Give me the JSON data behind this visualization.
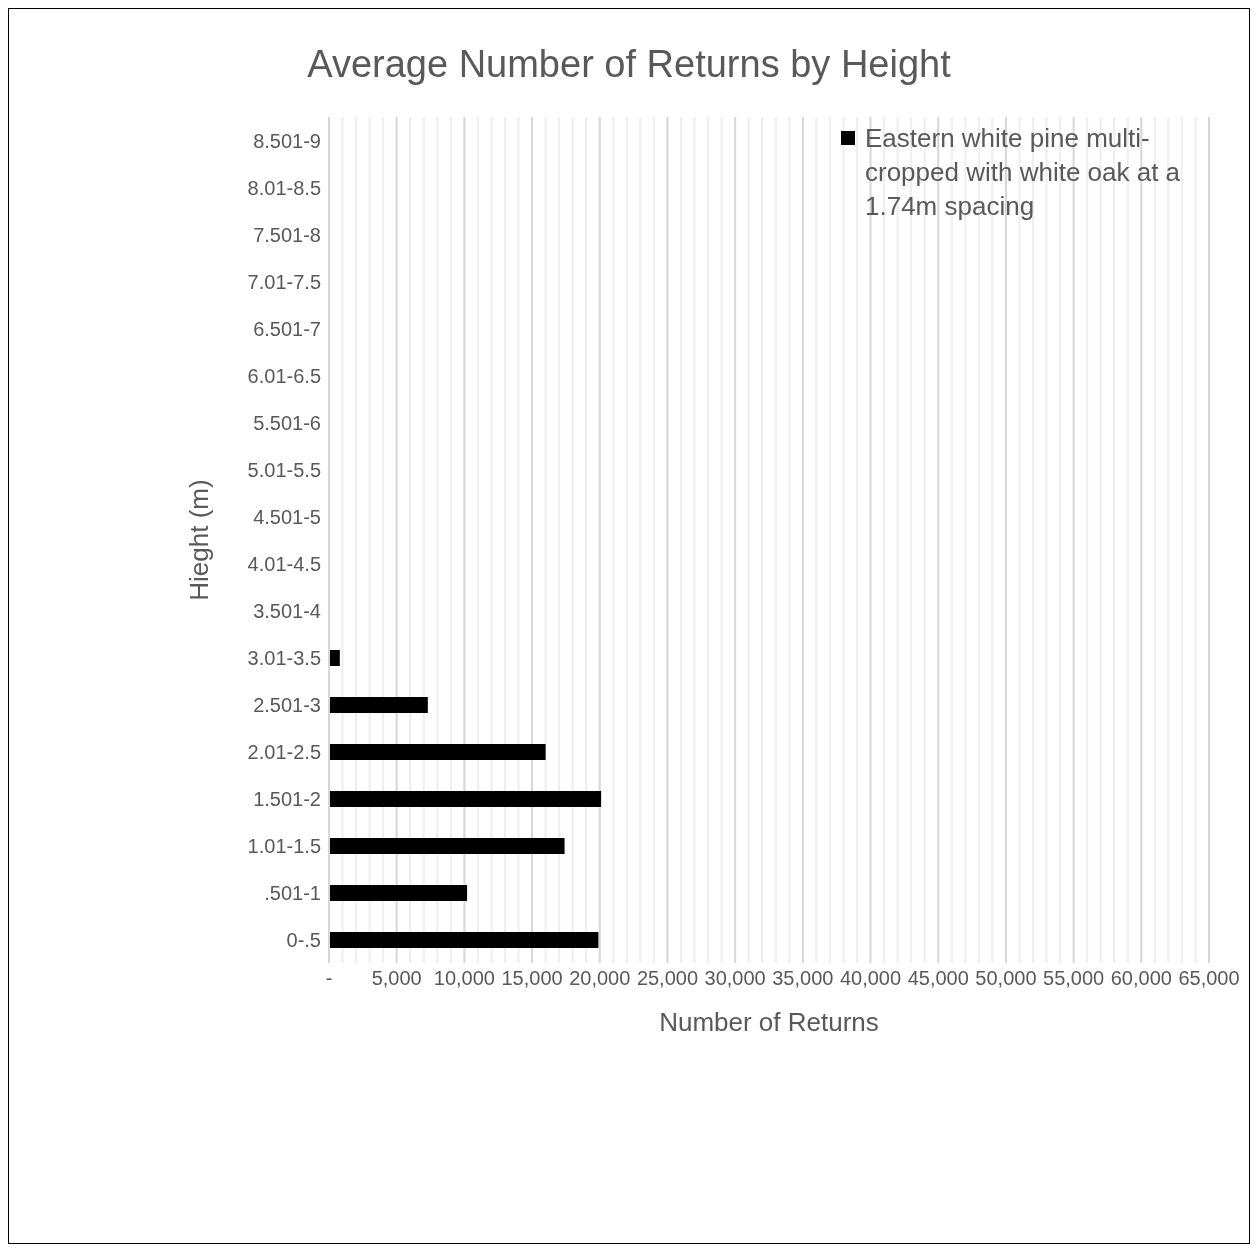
{
  "chart_data": {
    "type": "bar",
    "orientation": "horizontal",
    "title": "Average Number of Returns by Height",
    "xlabel": "Number of Returns",
    "ylabel": "Hieght (m)",
    "categories": [
      "8.501-9",
      "8.01-8.5",
      "7.501-8",
      "7.01-7.5",
      "6.501-7",
      "6.01-6.5",
      "5.501-6",
      "5.01-5.5",
      "4.501-5",
      "4.01-4.5",
      "3.501-4",
      "3.01-3.5",
      "2.501-3",
      "2.01-2.5",
      "1.501-2",
      "1.01-1.5",
      ".501-1",
      "0-.5"
    ],
    "series": [
      {
        "name": "Eastern white pine multi-cropped with white oak at a 1.74m spacing",
        "color": "#000000",
        "values": [
          0,
          0,
          0,
          0,
          0,
          0,
          0,
          0,
          0,
          0,
          0,
          800,
          7300,
          16000,
          20100,
          17400,
          10200,
          19900
        ]
      }
    ],
    "xlim": [
      0,
      65000
    ],
    "xticks": [
      {
        "value": 0,
        "label": "-"
      },
      {
        "value": 1000,
        "label": null
      },
      {
        "value": 2000,
        "label": null
      },
      {
        "value": 3000,
        "label": null
      },
      {
        "value": 4000,
        "label": null
      },
      {
        "value": 5000,
        "label": "5,000"
      },
      {
        "value": 6000,
        "label": null
      },
      {
        "value": 7000,
        "label": null
      },
      {
        "value": 8000,
        "label": null
      },
      {
        "value": 9000,
        "label": null
      },
      {
        "value": 10000,
        "label": "10,000"
      },
      {
        "value": 11000,
        "label": null
      },
      {
        "value": 12000,
        "label": null
      },
      {
        "value": 13000,
        "label": null
      },
      {
        "value": 14000,
        "label": null
      },
      {
        "value": 15000,
        "label": "15,000"
      },
      {
        "value": 16000,
        "label": null
      },
      {
        "value": 17000,
        "label": null
      },
      {
        "value": 18000,
        "label": null
      },
      {
        "value": 19000,
        "label": null
      },
      {
        "value": 20000,
        "label": "20,000"
      },
      {
        "value": 21000,
        "label": null
      },
      {
        "value": 22000,
        "label": null
      },
      {
        "value": 23000,
        "label": null
      },
      {
        "value": 24000,
        "label": null
      },
      {
        "value": 25000,
        "label": "25,000"
      },
      {
        "value": 26000,
        "label": null
      },
      {
        "value": 27000,
        "label": null
      },
      {
        "value": 28000,
        "label": null
      },
      {
        "value": 29000,
        "label": null
      },
      {
        "value": 30000,
        "label": "30,000"
      },
      {
        "value": 31000,
        "label": null
      },
      {
        "value": 32000,
        "label": null
      },
      {
        "value": 33000,
        "label": null
      },
      {
        "value": 34000,
        "label": null
      },
      {
        "value": 35000,
        "label": "35,000"
      },
      {
        "value": 36000,
        "label": null
      },
      {
        "value": 37000,
        "label": null
      },
      {
        "value": 38000,
        "label": null
      },
      {
        "value": 39000,
        "label": null
      },
      {
        "value": 40000,
        "label": "40,000"
      },
      {
        "value": 41000,
        "label": null
      },
      {
        "value": 42000,
        "label": null
      },
      {
        "value": 43000,
        "label": null
      },
      {
        "value": 44000,
        "label": null
      },
      {
        "value": 45000,
        "label": "45,000"
      },
      {
        "value": 46000,
        "label": null
      },
      {
        "value": 47000,
        "label": null
      },
      {
        "value": 48000,
        "label": null
      },
      {
        "value": 49000,
        "label": null
      },
      {
        "value": 50000,
        "label": "50,000"
      },
      {
        "value": 51000,
        "label": null
      },
      {
        "value": 52000,
        "label": null
      },
      {
        "value": 53000,
        "label": null
      },
      {
        "value": 54000,
        "label": null
      },
      {
        "value": 55000,
        "label": "55,000"
      },
      {
        "value": 56000,
        "label": null
      },
      {
        "value": 57000,
        "label": null
      },
      {
        "value": 58000,
        "label": null
      },
      {
        "value": 59000,
        "label": null
      },
      {
        "value": 60000,
        "label": "60,000"
      },
      {
        "value": 61000,
        "label": null
      },
      {
        "value": 62000,
        "label": null
      },
      {
        "value": 63000,
        "label": null
      },
      {
        "value": 64000,
        "label": null
      },
      {
        "value": 65000,
        "label": "65,000"
      }
    ],
    "grid": "x",
    "legend": "top right"
  }
}
